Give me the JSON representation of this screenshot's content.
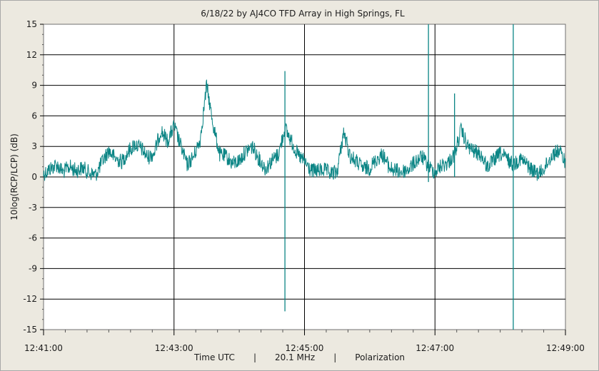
{
  "chart_data": {
    "type": "line",
    "title": "6/18/22  by  AJ4CO TFD Array  in  High Springs, FL",
    "xlabel": "",
    "ylabel": "10log(RCP/LCP) (dB)",
    "ylim": [
      -15,
      15
    ],
    "y_ticks": [
      15,
      12,
      9,
      6,
      3,
      0,
      -3,
      -6,
      -9,
      -12,
      -15
    ],
    "y_tick_labels": [
      "15",
      "12",
      "9",
      "6",
      "3",
      "0",
      "-3",
      "-6",
      "-9",
      "-12",
      "-15"
    ],
    "xlim": [
      "12:41:00",
      "12:49:00"
    ],
    "x_ticks": [
      "12:41:00",
      "12:43:00",
      "12:45:00",
      "12:47:00",
      "12:49:00"
    ],
    "grid": true,
    "color": "#0b8585",
    "series": [
      {
        "x": [
          "12:41:00",
          "12:41:06",
          "12:41:12",
          "12:41:18",
          "12:41:24",
          "12:41:30",
          "12:41:36",
          "12:41:42",
          "12:41:48",
          "12:41:54",
          "12:42:00",
          "12:42:06",
          "12:42:12",
          "12:42:18",
          "12:42:24",
          "12:42:30",
          "12:42:36",
          "12:42:42",
          "12:42:48",
          "12:42:54",
          "12:43:00",
          "12:43:06",
          "12:43:12",
          "12:43:18",
          "12:43:24",
          "12:43:30",
          "12:43:36",
          "12:43:42",
          "12:43:48",
          "12:43:54",
          "12:44:00",
          "12:44:06",
          "12:44:12",
          "12:44:18",
          "12:44:24",
          "12:44:30",
          "12:44:36",
          "12:44:42",
          "12:44:48",
          "12:44:54",
          "12:45:00",
          "12:45:06",
          "12:45:12",
          "12:45:18",
          "12:45:24",
          "12:45:30",
          "12:45:36",
          "12:45:42",
          "12:45:48",
          "12:45:54",
          "12:46:00",
          "12:46:06",
          "12:46:12",
          "12:46:18",
          "12:46:24",
          "12:46:30",
          "12:46:36",
          "12:46:42",
          "12:46:48",
          "12:46:54",
          "12:47:00",
          "12:47:06",
          "12:47:12",
          "12:47:18",
          "12:47:24",
          "12:47:30",
          "12:47:36",
          "12:47:42",
          "12:47:48",
          "12:47:54",
          "12:48:00",
          "12:48:06",
          "12:48:12",
          "12:48:18",
          "12:48:24",
          "12:48:30",
          "12:48:36",
          "12:48:42",
          "12:48:48",
          "12:48:54",
          "12:49:00"
        ],
        "values": [
          0.3,
          0.8,
          1.2,
          0.5,
          1.0,
          0.6,
          0.9,
          0.4,
          0.2,
          1.5,
          2.6,
          1.8,
          1.5,
          2.5,
          3.2,
          2.8,
          1.9,
          2.4,
          4.6,
          3.5,
          5.0,
          3.1,
          1.2,
          2.0,
          3.6,
          9.0,
          5.1,
          2.2,
          2.0,
          1.3,
          1.6,
          2.5,
          3.0,
          1.8,
          0.8,
          1.6,
          2.2,
          4.8,
          3.5,
          2.1,
          1.5,
          0.6,
          0.6,
          0.7,
          0.3,
          0.5,
          4.4,
          2.0,
          1.5,
          0.8,
          0.9,
          1.7,
          2.2,
          0.9,
          0.6,
          0.5,
          0.8,
          1.5,
          2.0,
          1.0,
          0.5,
          1.1,
          1.4,
          2.2,
          4.6,
          3.0,
          2.5,
          2.2,
          1.0,
          1.6,
          2.3,
          1.8,
          1.2,
          1.8,
          1.3,
          0.6,
          0.3,
          1.1,
          2.2,
          2.6,
          1.5
        ]
      }
    ],
    "spikes": [
      {
        "x": "12:44:42",
        "min": -13.2,
        "max": 10.4
      },
      {
        "x": "12:46:54",
        "min": -0.5,
        "max": 15.0
      },
      {
        "x": "12:48:12",
        "min": -15.0,
        "max": 15.0
      },
      {
        "x": "12:47:18",
        "min": 0.0,
        "max": 8.2
      }
    ]
  },
  "footer": {
    "xlabel": "Time UTC",
    "sep1": "|",
    "freq": "20.1 MHz",
    "sep2": "|",
    "mode": "Polarization"
  }
}
